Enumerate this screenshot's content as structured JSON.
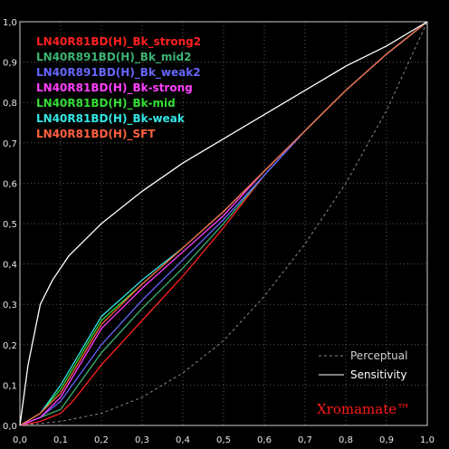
{
  "chart_data": {
    "type": "line",
    "xlim": [
      0,
      1
    ],
    "ylim": [
      0,
      1
    ],
    "grid": true,
    "legend_placement": "top-left",
    "x_ticks": [
      "0,0",
      "0,1",
      "0,2",
      "0,3",
      "0,4",
      "0,5",
      "0,6",
      "0,7",
      "0,8",
      "0,9",
      "1,0"
    ],
    "y_ticks": [
      "0,0",
      "0,1",
      "0,2",
      "0,3",
      "0,4",
      "0,5",
      "0,6",
      "0,7",
      "0,8",
      "0,9",
      "1,0"
    ],
    "series": [
      {
        "name": "LN40R81BD(H)_Bk_strong2",
        "color": "#ff2020",
        "x": [
          0,
          0.05,
          0.1,
          0.13,
          0.2,
          0.3,
          0.4,
          0.5,
          0.6,
          0.7,
          0.8,
          0.9,
          1.0
        ],
        "y": [
          0,
          0.01,
          0.03,
          0.06,
          0.15,
          0.26,
          0.37,
          0.49,
          0.62,
          0.73,
          0.83,
          0.92,
          1.0
        ]
      },
      {
        "name": "LN40R891BD(H)_Bk_mid2",
        "color": "#3cb371",
        "x": [
          0,
          0.05,
          0.1,
          0.2,
          0.3,
          0.4,
          0.5,
          0.6,
          0.7,
          0.8,
          0.9,
          1.0
        ],
        "y": [
          0,
          0.02,
          0.04,
          0.18,
          0.29,
          0.39,
          0.5,
          0.62,
          0.73,
          0.83,
          0.92,
          1.0
        ]
      },
      {
        "name": "LN40R891BD(H)_Bk_weak2",
        "color": "#6666ff",
        "x": [
          0,
          0.05,
          0.1,
          0.2,
          0.3,
          0.4,
          0.5,
          0.6,
          0.7,
          0.8,
          0.9,
          1.0
        ],
        "y": [
          0,
          0.02,
          0.06,
          0.2,
          0.31,
          0.41,
          0.51,
          0.62,
          0.73,
          0.83,
          0.92,
          1.0
        ]
      },
      {
        "name": "LN40R81BD(H)_Bk-strong",
        "color": "#ff40ff",
        "x": [
          0,
          0.05,
          0.1,
          0.2,
          0.3,
          0.4,
          0.5,
          0.6,
          0.7,
          0.8,
          0.9,
          1.0
        ],
        "y": [
          0,
          0.02,
          0.07,
          0.24,
          0.34,
          0.43,
          0.52,
          0.63,
          0.73,
          0.83,
          0.92,
          1.0
        ]
      },
      {
        "name": "LN40R81BD(H)_Bk-mid",
        "color": "#33dd33",
        "x": [
          0,
          0.05,
          0.1,
          0.2,
          0.3,
          0.4,
          0.5,
          0.6,
          0.7,
          0.8,
          0.9,
          1.0
        ],
        "y": [
          0,
          0.03,
          0.09,
          0.26,
          0.35,
          0.44,
          0.53,
          0.63,
          0.73,
          0.83,
          0.92,
          1.0
        ]
      },
      {
        "name": "LN40R81BD(H)_Bk-weak",
        "color": "#33e6e6",
        "x": [
          0,
          0.05,
          0.1,
          0.2,
          0.3,
          0.4,
          0.5,
          0.6,
          0.7,
          0.8,
          0.9,
          1.0
        ],
        "y": [
          0,
          0.03,
          0.1,
          0.27,
          0.36,
          0.44,
          0.53,
          0.63,
          0.73,
          0.83,
          0.92,
          1.0
        ]
      },
      {
        "name": "LN40R81BD(H)_SFT",
        "color": "#ff6040",
        "x": [
          0,
          0.05,
          0.1,
          0.2,
          0.3,
          0.4,
          0.5,
          0.6,
          0.7,
          0.8,
          0.9,
          1.0
        ],
        "y": [
          0,
          0.03,
          0.08,
          0.25,
          0.35,
          0.44,
          0.53,
          0.63,
          0.73,
          0.83,
          0.92,
          1.0
        ]
      },
      {
        "name": "Perceptual",
        "color": "#888888",
        "dashed": true,
        "x": [
          0,
          0.1,
          0.2,
          0.3,
          0.4,
          0.5,
          0.6,
          0.7,
          0.8,
          0.9,
          1.0
        ],
        "y": [
          0,
          0.01,
          0.03,
          0.07,
          0.13,
          0.21,
          0.32,
          0.45,
          0.6,
          0.78,
          1.0
        ]
      },
      {
        "name": "Sensitivity",
        "color": "#ffffff",
        "x": [
          0,
          0.02,
          0.05,
          0.08,
          0.12,
          0.2,
          0.3,
          0.4,
          0.5,
          0.6,
          0.7,
          0.8,
          0.9,
          1.0
        ],
        "y": [
          0,
          0.15,
          0.3,
          0.36,
          0.42,
          0.5,
          0.58,
          0.65,
          0.71,
          0.77,
          0.83,
          0.89,
          0.94,
          1.0
        ]
      }
    ],
    "legend_labels": {
      "strong2": "LN40R81BD(H)_Bk_strong2",
      "mid2": "LN40R891BD(H)_Bk_mid2",
      "weak2": "LN40R891BD(H)_Bk_weak2",
      "strong": "LN40R81BD(H)_Bk-strong",
      "mid": "LN40R81BD(H)_Bk-mid",
      "weak": "LN40R81BD(H)_Bk-weak",
      "sft": "LN40R81BD(H)_SFT",
      "perceptual": "Perceptual",
      "sensitivity": "Sensitivity"
    },
    "brand": "Xromamate™"
  }
}
